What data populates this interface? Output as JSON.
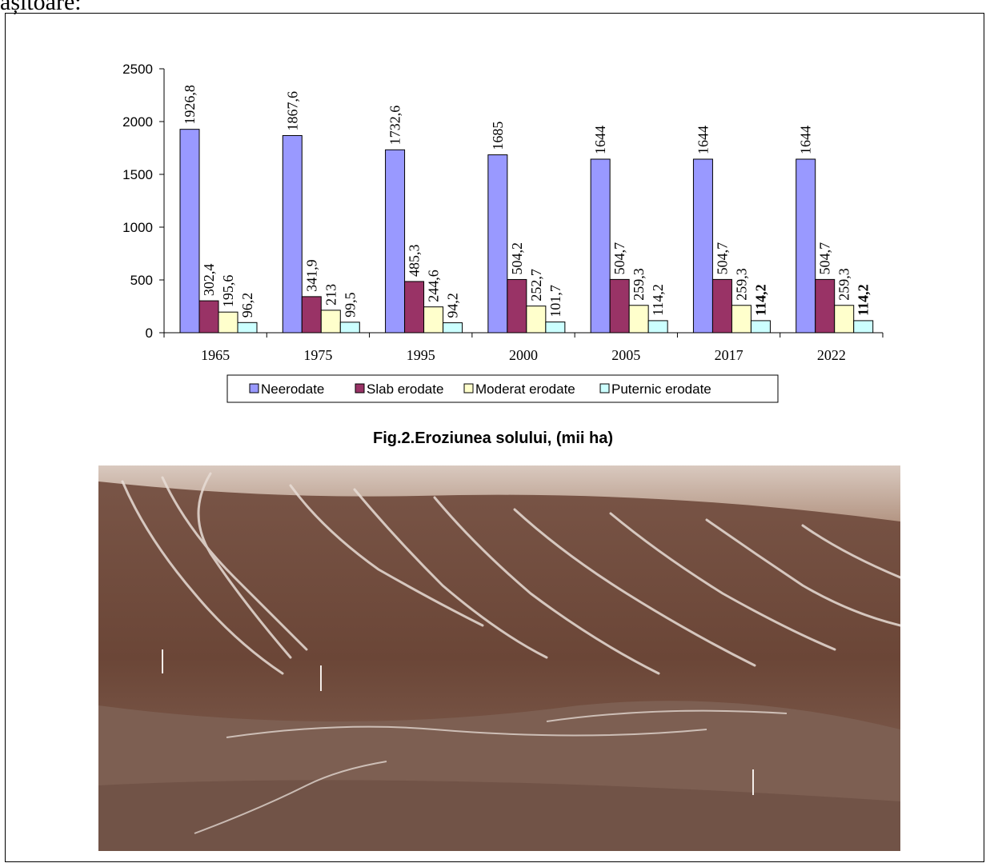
{
  "page": {
    "top_text": "așitoare:",
    "caption": "Fig.2.Eroziunea solului, (mii ha)"
  },
  "colors": {
    "neerodate": "#9999ff",
    "slab": "#993366",
    "moderat": "#ffffcc",
    "puternic": "#ccffff"
  },
  "chart_data": {
    "type": "bar",
    "title": "",
    "xlabel": "",
    "ylabel": "",
    "ylim": [
      0,
      2500
    ],
    "yticks": [
      0,
      500,
      1000,
      1500,
      2000,
      2500
    ],
    "grid": false,
    "legend_position": "bottom",
    "categories": [
      "1965",
      "1975",
      "1995",
      "2000",
      "2005",
      "2017",
      "2022"
    ],
    "series": [
      {
        "name": "Neerodate",
        "values": [
          1926.8,
          1867.6,
          1732.6,
          1685,
          1644,
          1644,
          1644
        ],
        "labels": [
          "1926,8",
          "1867,6",
          "1732,6",
          "1685",
          "1644",
          "1644",
          "1644"
        ],
        "bold": [
          false,
          false,
          false,
          false,
          false,
          false,
          false
        ]
      },
      {
        "name": "Slab erodate",
        "values": [
          302.4,
          341.9,
          485.3,
          504.2,
          504.7,
          504.7,
          504.7
        ],
        "labels": [
          "302,4",
          "341,9",
          "485,3",
          "504,2",
          "504,7",
          "504,7",
          "504,7"
        ],
        "bold": [
          false,
          false,
          false,
          false,
          false,
          false,
          false
        ]
      },
      {
        "name": "Moderat erodate",
        "values": [
          195.6,
          213,
          244.6,
          252.7,
          259.3,
          259.3,
          259.3
        ],
        "labels": [
          "195,6",
          "213",
          "244,6",
          "252,7",
          "259,3",
          "259,3",
          "259,3"
        ],
        "bold": [
          false,
          false,
          false,
          false,
          false,
          false,
          false
        ]
      },
      {
        "name": "Puternic erodate",
        "values": [
          96.2,
          99.5,
          94.2,
          101.7,
          114.2,
          114.2,
          114.2
        ],
        "labels": [
          "96,2",
          "99,5",
          "94,2",
          "101,7",
          "114,2",
          "114,2",
          "114,2"
        ],
        "bold": [
          false,
          false,
          false,
          false,
          false,
          true,
          true
        ]
      }
    ]
  }
}
